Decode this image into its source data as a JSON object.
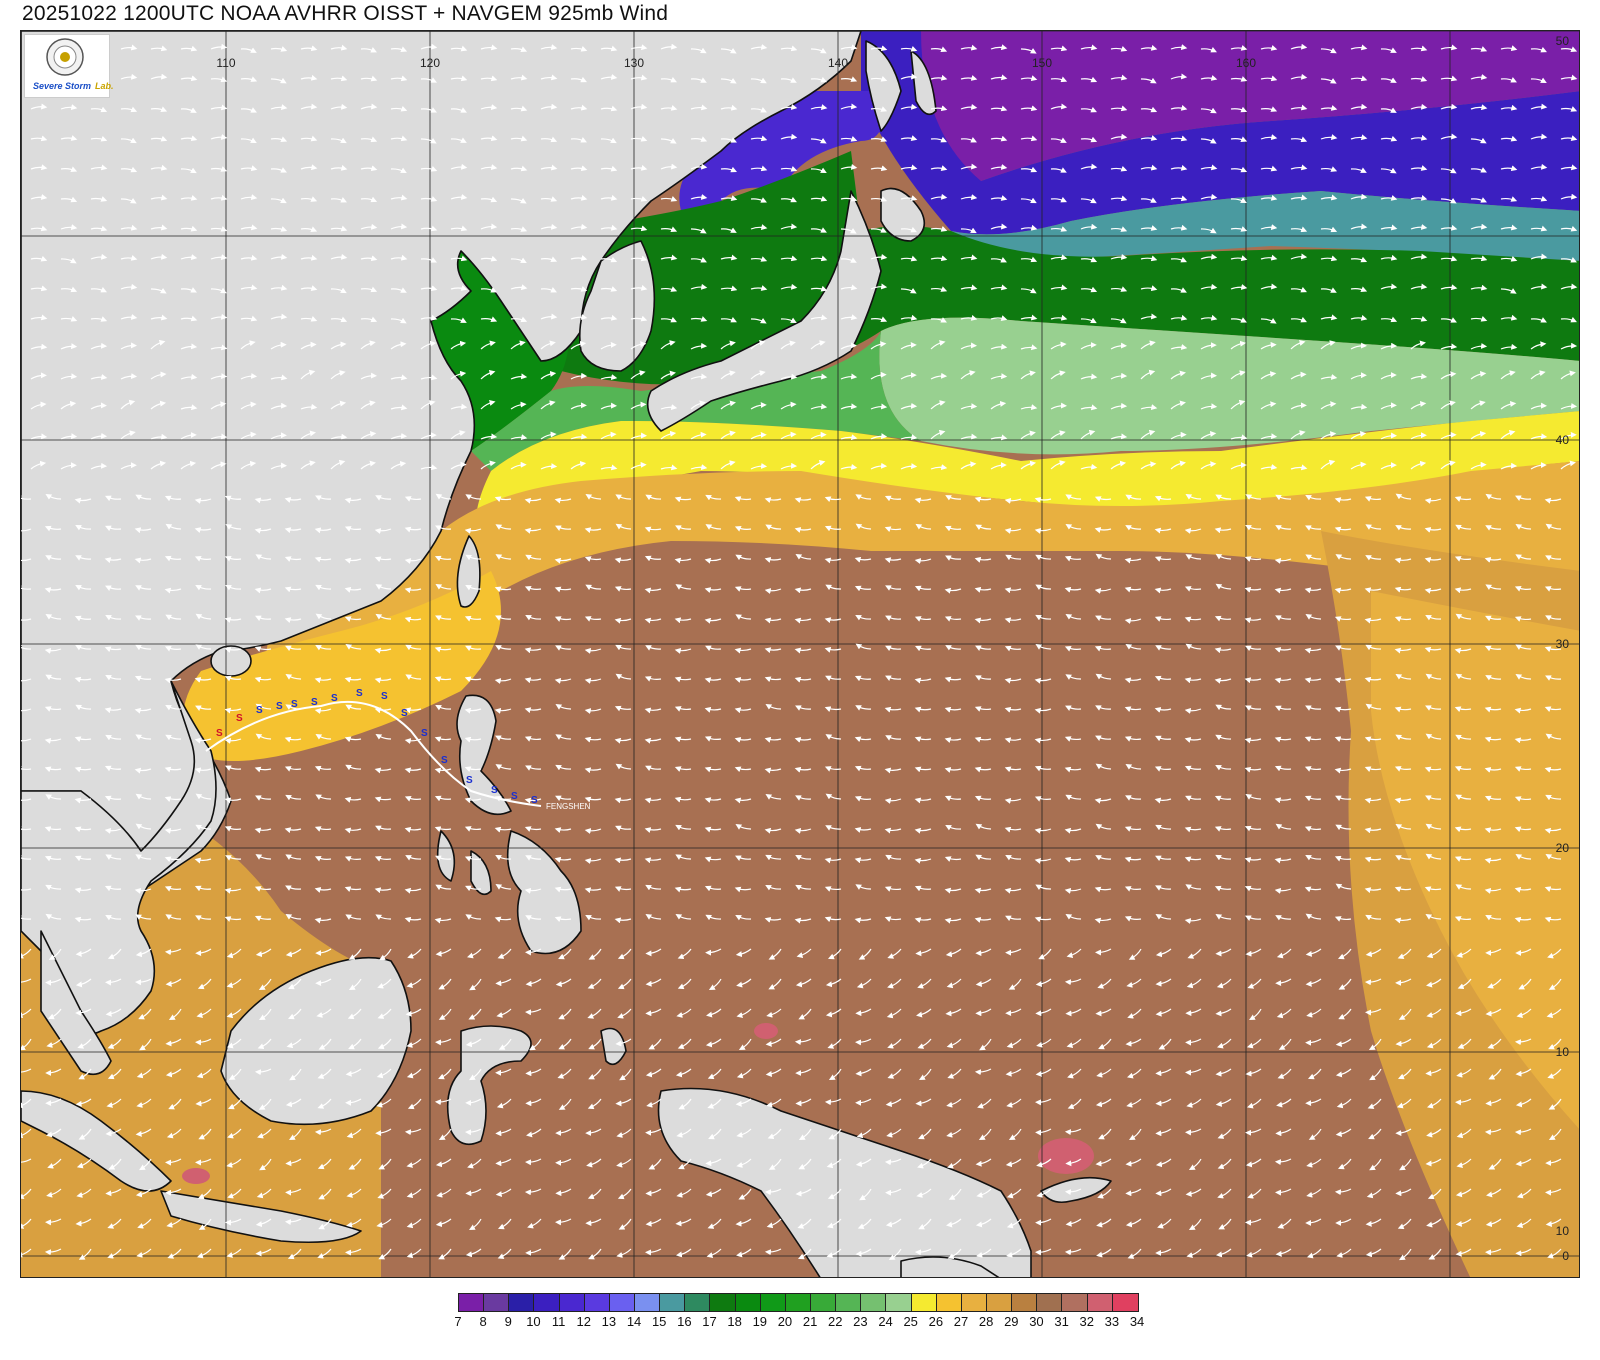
{
  "title": "20251022 1200UTC NOAA AVHRR OISST + NAVGEM 925mb Wind",
  "logo": {
    "text_a": "Severe Storm",
    "text_b": "Lab."
  },
  "map": {
    "projection": "Mercator",
    "lon_labels": [
      "110",
      "120",
      "130",
      "140",
      "150",
      "160"
    ],
    "lat_labels": [
      "50",
      "40",
      "30",
      "20",
      "10",
      "0",
      "10"
    ],
    "storm_label": "FENGSHEN",
    "storm_track_symbol": "S",
    "field": "Sea surface temperature (°C)",
    "overlay": "925mb wind streamlines"
  },
  "colorbar": {
    "labels": [
      "7",
      "8",
      "9",
      "10",
      "11",
      "12",
      "13",
      "14",
      "15",
      "16",
      "17",
      "18",
      "19",
      "20",
      "21",
      "22",
      "23",
      "24",
      "25",
      "26",
      "27",
      "28",
      "29",
      "30",
      "31",
      "32",
      "33",
      "34"
    ],
    "colors": [
      "#7a1fa8",
      "#6a3aa0",
      "#2a1fa8",
      "#3b1fc0",
      "#4a28d0",
      "#5a3ae0",
      "#6a60f0",
      "#7a90f0",
      "#4a9aa0",
      "#2e8a60",
      "#0e7a10",
      "#0a8a10",
      "#109a18",
      "#20a020",
      "#38aa38",
      "#55b555",
      "#75c070",
      "#98d090",
      "#f5ea30",
      "#f5c230",
      "#e8b040",
      "#d9a040",
      "#b98040",
      "#a07050",
      "#b07060",
      "#d06070",
      "#e04060"
    ]
  }
}
